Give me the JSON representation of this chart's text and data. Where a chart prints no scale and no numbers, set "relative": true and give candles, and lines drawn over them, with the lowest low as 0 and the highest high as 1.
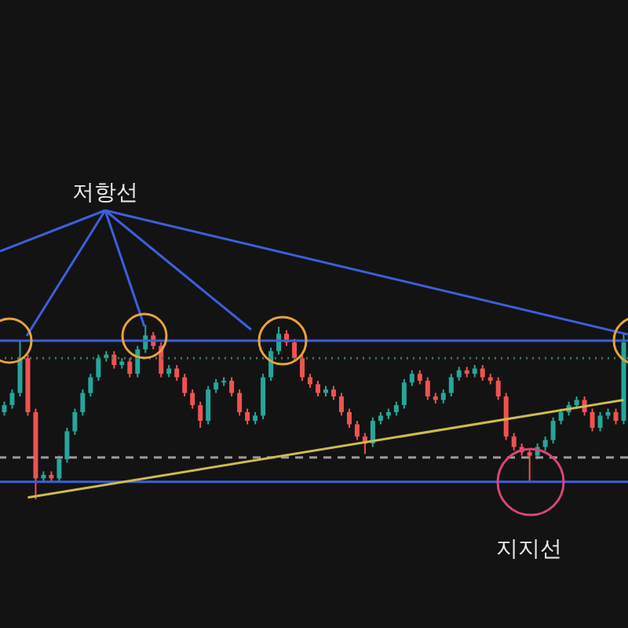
{
  "chart_data": {
    "type": "candlestick",
    "relative": true,
    "tick_labels": false,
    "categories": [
      null,
      null,
      null,
      null,
      null,
      null,
      null,
      null,
      null,
      null,
      null,
      null,
      null,
      null,
      null,
      null,
      null,
      null,
      null,
      null,
      null,
      null,
      null,
      null,
      null,
      null,
      null,
      null,
      null,
      null,
      null,
      null,
      null,
      null,
      null,
      null,
      null,
      null,
      null,
      null,
      null,
      null,
      null,
      null,
      null,
      null,
      null,
      null,
      null,
      null,
      null,
      null,
      null,
      null,
      null,
      null,
      null,
      null,
      null,
      null,
      null,
      null,
      null,
      null,
      null,
      null,
      null,
      null,
      null,
      null,
      null,
      null,
      null,
      null,
      null,
      null,
      null,
      null,
      null,
      null
    ],
    "ohlc": [
      [
        0.5,
        0.56,
        0.48,
        0.54
      ],
      [
        0.54,
        0.63,
        0.52,
        0.61
      ],
      [
        0.61,
        0.91,
        0.59,
        0.81
      ],
      [
        0.81,
        0.83,
        0.48,
        0.5
      ],
      [
        0.5,
        0.52,
        0.0,
        0.12
      ],
      [
        0.12,
        0.16,
        0.1,
        0.14
      ],
      [
        0.14,
        0.16,
        0.1,
        0.12
      ],
      [
        0.12,
        0.25,
        0.1,
        0.23
      ],
      [
        0.23,
        0.41,
        0.21,
        0.39
      ],
      [
        0.39,
        0.52,
        0.37,
        0.5
      ],
      [
        0.5,
        0.63,
        0.48,
        0.61
      ],
      [
        0.61,
        0.72,
        0.59,
        0.7
      ],
      [
        0.7,
        0.83,
        0.68,
        0.81
      ],
      [
        0.81,
        0.85,
        0.79,
        0.83
      ],
      [
        0.83,
        0.85,
        0.75,
        0.77
      ],
      [
        0.77,
        0.81,
        0.75,
        0.79
      ],
      [
        0.79,
        0.81,
        0.7,
        0.72
      ],
      [
        0.72,
        0.88,
        0.7,
        0.86
      ],
      [
        0.86,
        1.0,
        0.84,
        0.94
      ],
      [
        0.94,
        0.96,
        0.86,
        0.88
      ],
      [
        0.88,
        0.9,
        0.7,
        0.72
      ],
      [
        0.72,
        0.77,
        0.7,
        0.75
      ],
      [
        0.75,
        0.77,
        0.68,
        0.7
      ],
      [
        0.7,
        0.72,
        0.59,
        0.61
      ],
      [
        0.61,
        0.63,
        0.52,
        0.54
      ],
      [
        0.54,
        0.56,
        0.41,
        0.45
      ],
      [
        0.45,
        0.65,
        0.43,
        0.63
      ],
      [
        0.63,
        0.69,
        0.61,
        0.67
      ],
      [
        0.67,
        0.7,
        0.65,
        0.68
      ],
      [
        0.68,
        0.7,
        0.59,
        0.61
      ],
      [
        0.61,
        0.63,
        0.48,
        0.5
      ],
      [
        0.5,
        0.52,
        0.43,
        0.45
      ],
      [
        0.45,
        0.5,
        0.43,
        0.48
      ],
      [
        0.48,
        0.72,
        0.46,
        0.7
      ],
      [
        0.7,
        0.87,
        0.68,
        0.85
      ],
      [
        0.85,
        0.99,
        0.83,
        0.95
      ],
      [
        0.95,
        0.97,
        0.88,
        0.9
      ],
      [
        0.9,
        0.92,
        0.79,
        0.81
      ],
      [
        0.81,
        0.83,
        0.68,
        0.7
      ],
      [
        0.7,
        0.72,
        0.64,
        0.66
      ],
      [
        0.66,
        0.68,
        0.59,
        0.61
      ],
      [
        0.61,
        0.65,
        0.59,
        0.63
      ],
      [
        0.63,
        0.65,
        0.57,
        0.59
      ],
      [
        0.59,
        0.61,
        0.48,
        0.5
      ],
      [
        0.5,
        0.52,
        0.41,
        0.43
      ],
      [
        0.43,
        0.45,
        0.34,
        0.36
      ],
      [
        0.36,
        0.38,
        0.26,
        0.32
      ],
      [
        0.32,
        0.47,
        0.3,
        0.45
      ],
      [
        0.45,
        0.5,
        0.43,
        0.48
      ],
      [
        0.48,
        0.52,
        0.46,
        0.5
      ],
      [
        0.5,
        0.56,
        0.48,
        0.54
      ],
      [
        0.54,
        0.69,
        0.52,
        0.67
      ],
      [
        0.67,
        0.74,
        0.65,
        0.72
      ],
      [
        0.72,
        0.74,
        0.66,
        0.68
      ],
      [
        0.68,
        0.7,
        0.57,
        0.59
      ],
      [
        0.59,
        0.61,
        0.55,
        0.57
      ],
      [
        0.57,
        0.63,
        0.55,
        0.61
      ],
      [
        0.61,
        0.72,
        0.59,
        0.7
      ],
      [
        0.7,
        0.76,
        0.68,
        0.74
      ],
      [
        0.74,
        0.76,
        0.7,
        0.72
      ],
      [
        0.72,
        0.77,
        0.7,
        0.75
      ],
      [
        0.75,
        0.77,
        0.68,
        0.7
      ],
      [
        0.7,
        0.72,
        0.66,
        0.68
      ],
      [
        0.68,
        0.7,
        0.57,
        0.59
      ],
      [
        0.59,
        0.61,
        0.34,
        0.36
      ],
      [
        0.36,
        0.38,
        0.28,
        0.3
      ],
      [
        0.3,
        0.32,
        0.25,
        0.27
      ],
      [
        0.27,
        0.29,
        0.1,
        0.25
      ],
      [
        0.25,
        0.32,
        0.23,
        0.3
      ],
      [
        0.3,
        0.36,
        0.28,
        0.34
      ],
      [
        0.34,
        0.47,
        0.32,
        0.45
      ],
      [
        0.45,
        0.52,
        0.43,
        0.5
      ],
      [
        0.5,
        0.56,
        0.48,
        0.54
      ],
      [
        0.54,
        0.59,
        0.52,
        0.57
      ],
      [
        0.57,
        0.59,
        0.48,
        0.5
      ],
      [
        0.5,
        0.52,
        0.39,
        0.41
      ],
      [
        0.41,
        0.5,
        0.39,
        0.48
      ],
      [
        0.48,
        0.52,
        0.46,
        0.5
      ],
      [
        0.5,
        0.52,
        0.43,
        0.45
      ],
      [
        0.45,
        0.95,
        0.43,
        0.9
      ]
    ],
    "colors": [
      "#26a69a",
      "#26a69a",
      "#26a69a",
      "#ef5350",
      "#ef5350",
      "#26a69a",
      "#ef5350",
      "#26a69a",
      "#26a69a",
      "#26a69a",
      "#26a69a",
      "#26a69a",
      "#26a69a",
      "#26a69a",
      "#ef5350",
      "#26a69a",
      "#ef5350",
      "#26a69a",
      "#26a69a",
      "#ef5350",
      "#ef5350",
      "#26a69a",
      "#ef5350",
      "#ef5350",
      "#ef5350",
      "#ef5350",
      "#26a69a",
      "#26a69a",
      "#26a69a",
      "#ef5350",
      "#ef5350",
      "#ef5350",
      "#26a69a",
      "#26a69a",
      "#26a69a",
      "#26a69a",
      "#ef5350",
      "#ef5350",
      "#ef5350",
      "#ef5350",
      "#ef5350",
      "#26a69a",
      "#ef5350",
      "#ef5350",
      "#ef5350",
      "#ef5350",
      "#ef5350",
      "#26a69a",
      "#26a69a",
      "#26a69a",
      "#26a69a",
      "#26a69a",
      "#26a69a",
      "#ef5350",
      "#ef5350",
      "#ef5350",
      "#26a69a",
      "#26a69a",
      "#26a69a",
      "#ef5350",
      "#26a69a",
      "#ef5350",
      "#ef5350",
      "#ef5350",
      "#ef5350",
      "#ef5350",
      "#ef5350",
      "#ef5350",
      "#26a69a",
      "#26a69a",
      "#26a69a",
      "#26a69a",
      "#26a69a",
      "#26a69a",
      "#ef5350",
      "#ef5350",
      "#26a69a",
      "#26a69a",
      "#ef5350",
      "#26a69a"
    ],
    "series": [
      {
        "type": "line",
        "color": "#cdbb4e",
        "values": [
          null,
          null,
          null,
          0.01,
          null,
          null,
          null,
          null,
          null,
          null,
          null,
          null,
          null,
          null,
          null,
          null,
          null,
          null,
          null,
          null,
          null,
          null,
          null,
          null,
          null,
          null,
          null,
          null,
          null,
          null,
          null,
          null,
          null,
          null,
          null,
          null,
          null,
          null,
          null,
          null,
          null,
          null,
          null,
          null,
          null,
          null,
          null,
          null,
          null,
          null,
          null,
          null,
          null,
          null,
          null,
          null,
          null,
          null,
          null,
          null,
          null,
          null,
          null,
          null,
          null,
          null,
          null,
          null,
          null,
          null,
          null,
          null,
          null,
          null,
          null,
          null,
          null,
          null,
          null,
          0.57
        ]
      }
    ],
    "ref_lines": [
      {
        "axis": "y",
        "value": 0.91,
        "color": "#3d5fdc",
        "line_style": "solid"
      },
      {
        "axis": "y",
        "value": 0.1,
        "color": "#3d5fdc",
        "line_style": "solid"
      },
      {
        "axis": "y",
        "value": 0.81,
        "color": "#3f7a4f",
        "line_style": "dotted"
      },
      {
        "axis": "y",
        "value": 0.24,
        "color": "#9a9a9a",
        "line_style": "dashed"
      }
    ],
    "annotations": [
      "저항선",
      "지지선"
    ]
  }
}
